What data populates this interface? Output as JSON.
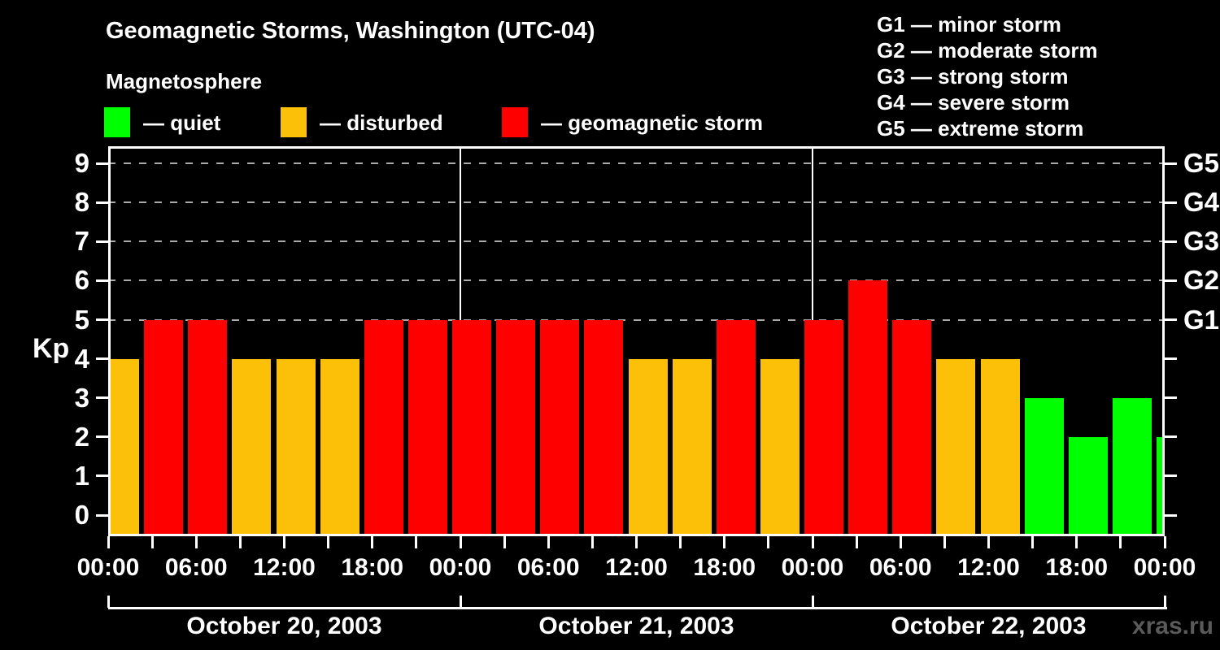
{
  "page": {
    "background": "#000000",
    "watermark": "xras.ru"
  },
  "header": {
    "title": "Geomagnetic Storms, Washington (UTC-04)",
    "subtitle": "Magnetosphere"
  },
  "legend": {
    "items": [
      {
        "key": "quiet",
        "label": "— quiet",
        "color": "#00FF00"
      },
      {
        "key": "disturbed",
        "label": "— disturbed",
        "color": "#FDC009"
      },
      {
        "key": "storm",
        "label": "— geomagnetic storm",
        "color": "#FF0000"
      }
    ]
  },
  "g_scale_legend": {
    "items": [
      "G1 — minor storm",
      "G2 — moderate storm",
      "G3 — strong storm",
      "G4 — severe storm",
      "G5 — extreme storm"
    ]
  },
  "axes": {
    "y_label": "Kp",
    "y_ticks": [
      0,
      1,
      2,
      3,
      4,
      5,
      6,
      7,
      8,
      9
    ],
    "grid_kp_levels": [
      5,
      6,
      7,
      8,
      9
    ],
    "right_axis_labels": [
      {
        "kp": 5,
        "label": "G1"
      },
      {
        "kp": 6,
        "label": "G2"
      },
      {
        "kp": 7,
        "label": "G3"
      },
      {
        "kp": 8,
        "label": "G4"
      },
      {
        "kp": 9,
        "label": "G5"
      }
    ],
    "x_tick_labels": [
      "00:00",
      "06:00",
      "12:00",
      "18:00",
      "00:00",
      "06:00",
      "12:00",
      "18:00",
      "00:00",
      "06:00",
      "12:00",
      "18:00",
      "00:00"
    ],
    "day_labels": [
      "October 20, 2003",
      "October 21, 2003",
      "October 22, 2003"
    ]
  },
  "chart_data": {
    "type": "bar",
    "title": "Geomagnetic Storms, Washington (UTC-04)",
    "subtitle": "Magnetosphere",
    "ylabel": "Kp",
    "ylim": [
      0,
      9
    ],
    "interval_hours": 3,
    "timezone": "UTC-04",
    "grid": "dashed horizontal lines at Kp 5-9 (G1-G5 storm levels)",
    "legend_position": "top",
    "state_colors": {
      "quiet": "#00FF00",
      "disturbed": "#FDC009",
      "storm": "#FF0000"
    },
    "days": [
      {
        "date": "October 20, 2003",
        "kp": [
          4,
          5,
          5,
          4,
          4,
          4,
          5,
          5
        ]
      },
      {
        "date": "October 21, 2003",
        "kp": [
          5,
          5,
          5,
          5,
          4,
          4,
          5,
          4
        ]
      },
      {
        "date": "October 22, 2003",
        "kp": [
          5,
          6,
          5,
          4,
          4,
          3,
          2,
          3
        ]
      }
    ],
    "partial_next_interval_kp": 2,
    "bars": [
      {
        "start_hour": 0,
        "kp": 4,
        "state": "disturbed"
      },
      {
        "start_hour": 3,
        "kp": 5,
        "state": "storm"
      },
      {
        "start_hour": 6,
        "kp": 5,
        "state": "storm"
      },
      {
        "start_hour": 9,
        "kp": 4,
        "state": "disturbed"
      },
      {
        "start_hour": 12,
        "kp": 4,
        "state": "disturbed"
      },
      {
        "start_hour": 15,
        "kp": 4,
        "state": "disturbed"
      },
      {
        "start_hour": 18,
        "kp": 5,
        "state": "storm"
      },
      {
        "start_hour": 21,
        "kp": 5,
        "state": "storm"
      },
      {
        "start_hour": 24,
        "kp": 5,
        "state": "storm"
      },
      {
        "start_hour": 27,
        "kp": 5,
        "state": "storm"
      },
      {
        "start_hour": 30,
        "kp": 5,
        "state": "storm"
      },
      {
        "start_hour": 33,
        "kp": 5,
        "state": "storm"
      },
      {
        "start_hour": 36,
        "kp": 4,
        "state": "disturbed"
      },
      {
        "start_hour": 39,
        "kp": 4,
        "state": "disturbed"
      },
      {
        "start_hour": 42,
        "kp": 5,
        "state": "storm"
      },
      {
        "start_hour": 45,
        "kp": 4,
        "state": "disturbed"
      },
      {
        "start_hour": 48,
        "kp": 5,
        "state": "storm"
      },
      {
        "start_hour": 51,
        "kp": 6,
        "state": "storm"
      },
      {
        "start_hour": 54,
        "kp": 5,
        "state": "storm"
      },
      {
        "start_hour": 57,
        "kp": 4,
        "state": "disturbed"
      },
      {
        "start_hour": 60,
        "kp": 4,
        "state": "disturbed"
      },
      {
        "start_hour": 63,
        "kp": 3,
        "state": "quiet"
      },
      {
        "start_hour": 66,
        "kp": 2,
        "state": "quiet"
      },
      {
        "start_hour": 69,
        "kp": 3,
        "state": "quiet"
      },
      {
        "start_hour": 72,
        "kp": 2,
        "state": "quiet"
      }
    ]
  }
}
